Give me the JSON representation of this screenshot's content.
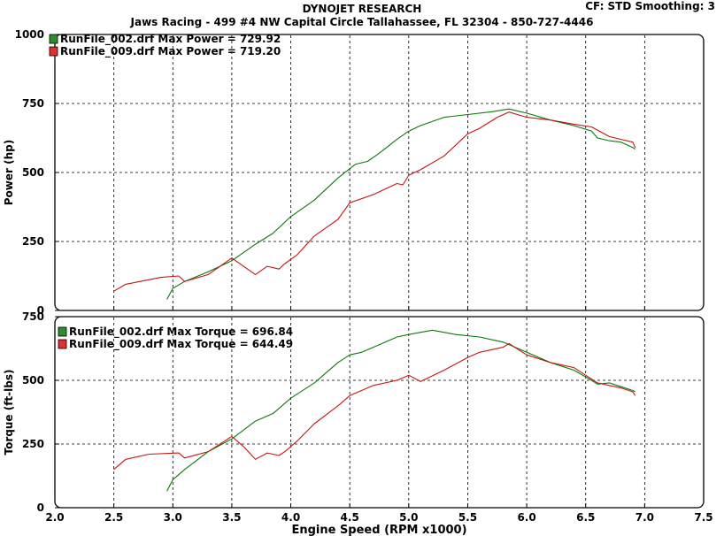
{
  "header": {
    "title": "DYNOJET RESEARCH",
    "subtitle": "Jaws Racing - 499 #4 NW Capital Circle Tallahassee, FL 32304 - 850-727-4446",
    "settings": "CF: STD  Smoothing: 3"
  },
  "chart_data": [
    {
      "type": "line",
      "ylabel": "Power (hp)",
      "ylim": [
        0,
        1000
      ],
      "yticks": [
        0,
        250,
        500,
        750,
        1000
      ],
      "xlim": [
        2.0,
        7.5
      ],
      "grid": true,
      "legend_position": "top-left",
      "series": [
        {
          "name": "RunFile_002.drf Max Power = 729.92",
          "color": "#0a7a0a",
          "legend_color": "#2e8b2e",
          "points": [
            [
              2.95,
              40
            ],
            [
              3.0,
              80
            ],
            [
              3.1,
              105
            ],
            [
              3.3,
              140
            ],
            [
              3.5,
              180
            ],
            [
              3.7,
              240
            ],
            [
              3.85,
              280
            ],
            [
              4.0,
              340
            ],
            [
              4.2,
              400
            ],
            [
              4.4,
              480
            ],
            [
              4.55,
              530
            ],
            [
              4.65,
              540
            ],
            [
              4.75,
              570
            ],
            [
              4.9,
              620
            ],
            [
              5.0,
              650
            ],
            [
              5.1,
              670
            ],
            [
              5.3,
              700
            ],
            [
              5.5,
              710
            ],
            [
              5.7,
              720
            ],
            [
              5.85,
              730
            ],
            [
              6.0,
              715
            ],
            [
              6.2,
              690
            ],
            [
              6.4,
              670
            ],
            [
              6.55,
              650
            ],
            [
              6.6,
              625
            ],
            [
              6.7,
              615
            ],
            [
              6.8,
              610
            ],
            [
              6.9,
              590
            ],
            [
              6.92,
              585
            ]
          ]
        },
        {
          "name": "RunFile_009.drf Max Power = 719.20",
          "color": "#c81414",
          "legend_color": "#e03030",
          "points": [
            [
              2.5,
              70
            ],
            [
              2.6,
              95
            ],
            [
              2.9,
              120
            ],
            [
              3.05,
              125
            ],
            [
              3.1,
              105
            ],
            [
              3.3,
              130
            ],
            [
              3.5,
              190
            ],
            [
              3.6,
              160
            ],
            [
              3.7,
              130
            ],
            [
              3.8,
              160
            ],
            [
              3.9,
              150
            ],
            [
              3.95,
              170
            ],
            [
              4.05,
              200
            ],
            [
              4.2,
              270
            ],
            [
              4.4,
              330
            ],
            [
              4.5,
              390
            ],
            [
              4.7,
              420
            ],
            [
              4.9,
              460
            ],
            [
              4.95,
              455
            ],
            [
              5.0,
              490
            ],
            [
              5.1,
              510
            ],
            [
              5.3,
              560
            ],
            [
              5.5,
              640
            ],
            [
              5.6,
              660
            ],
            [
              5.75,
              700
            ],
            [
              5.85,
              719
            ],
            [
              6.0,
              700
            ],
            [
              6.2,
              690
            ],
            [
              6.4,
              675
            ],
            [
              6.55,
              665
            ],
            [
              6.7,
              630
            ],
            [
              6.8,
              620
            ],
            [
              6.9,
              610
            ],
            [
              6.92,
              590
            ]
          ]
        }
      ]
    },
    {
      "type": "line",
      "ylabel": "Torque (ft-lbs)",
      "xlabel": "Engine Speed (RPM x1000)",
      "ylim": [
        0,
        750
      ],
      "yticks": [
        0,
        250,
        500,
        750
      ],
      "xlim": [
        2.0,
        7.5
      ],
      "xticks": [
        "2.0",
        "2.5",
        "3.0",
        "3.5",
        "4.0",
        "4.5",
        "5.0",
        "5.5",
        "6.0",
        "6.5",
        "7.0",
        "7.5"
      ],
      "grid": true,
      "legend_position": "top-left",
      "series": [
        {
          "name": "RunFile_002.drf Max Torque = 696.84",
          "color": "#0a7a0a",
          "legend_color": "#2e8b2e",
          "points": [
            [
              2.95,
              65
            ],
            [
              3.0,
              110
            ],
            [
              3.1,
              150
            ],
            [
              3.3,
              220
            ],
            [
              3.5,
              270
            ],
            [
              3.7,
              340
            ],
            [
              3.85,
              370
            ],
            [
              4.0,
              430
            ],
            [
              4.2,
              490
            ],
            [
              4.4,
              570
            ],
            [
              4.5,
              600
            ],
            [
              4.6,
              610
            ],
            [
              4.75,
              640
            ],
            [
              4.9,
              670
            ],
            [
              5.0,
              680
            ],
            [
              5.2,
              697
            ],
            [
              5.4,
              680
            ],
            [
              5.6,
              670
            ],
            [
              5.8,
              650
            ],
            [
              6.0,
              610
            ],
            [
              6.2,
              570
            ],
            [
              6.4,
              540
            ],
            [
              6.55,
              500
            ],
            [
              6.6,
              485
            ],
            [
              6.7,
              490
            ],
            [
              6.8,
              475
            ],
            [
              6.9,
              460
            ],
            [
              6.92,
              455
            ]
          ]
        },
        {
          "name": "RunFile_009.drf Max Torque = 644.49",
          "color": "#c81414",
          "legend_color": "#e03030",
          "points": [
            [
              2.5,
              150
            ],
            [
              2.6,
              190
            ],
            [
              2.8,
              210
            ],
            [
              3.05,
              215
            ],
            [
              3.1,
              195
            ],
            [
              3.3,
              220
            ],
            [
              3.5,
              280
            ],
            [
              3.6,
              240
            ],
            [
              3.7,
              190
            ],
            [
              3.8,
              215
            ],
            [
              3.9,
              205
            ],
            [
              3.95,
              220
            ],
            [
              4.05,
              260
            ],
            [
              4.2,
              330
            ],
            [
              4.4,
              400
            ],
            [
              4.5,
              440
            ],
            [
              4.7,
              480
            ],
            [
              4.9,
              500
            ],
            [
              5.0,
              520
            ],
            [
              5.1,
              495
            ],
            [
              5.3,
              540
            ],
            [
              5.5,
              590
            ],
            [
              5.6,
              610
            ],
            [
              5.8,
              630
            ],
            [
              5.85,
              644
            ],
            [
              6.0,
              600
            ],
            [
              6.2,
              570
            ],
            [
              6.4,
              550
            ],
            [
              6.5,
              520
            ],
            [
              6.6,
              490
            ],
            [
              6.7,
              480
            ],
            [
              6.8,
              470
            ],
            [
              6.9,
              455
            ],
            [
              6.92,
              440
            ]
          ]
        }
      ]
    }
  ]
}
